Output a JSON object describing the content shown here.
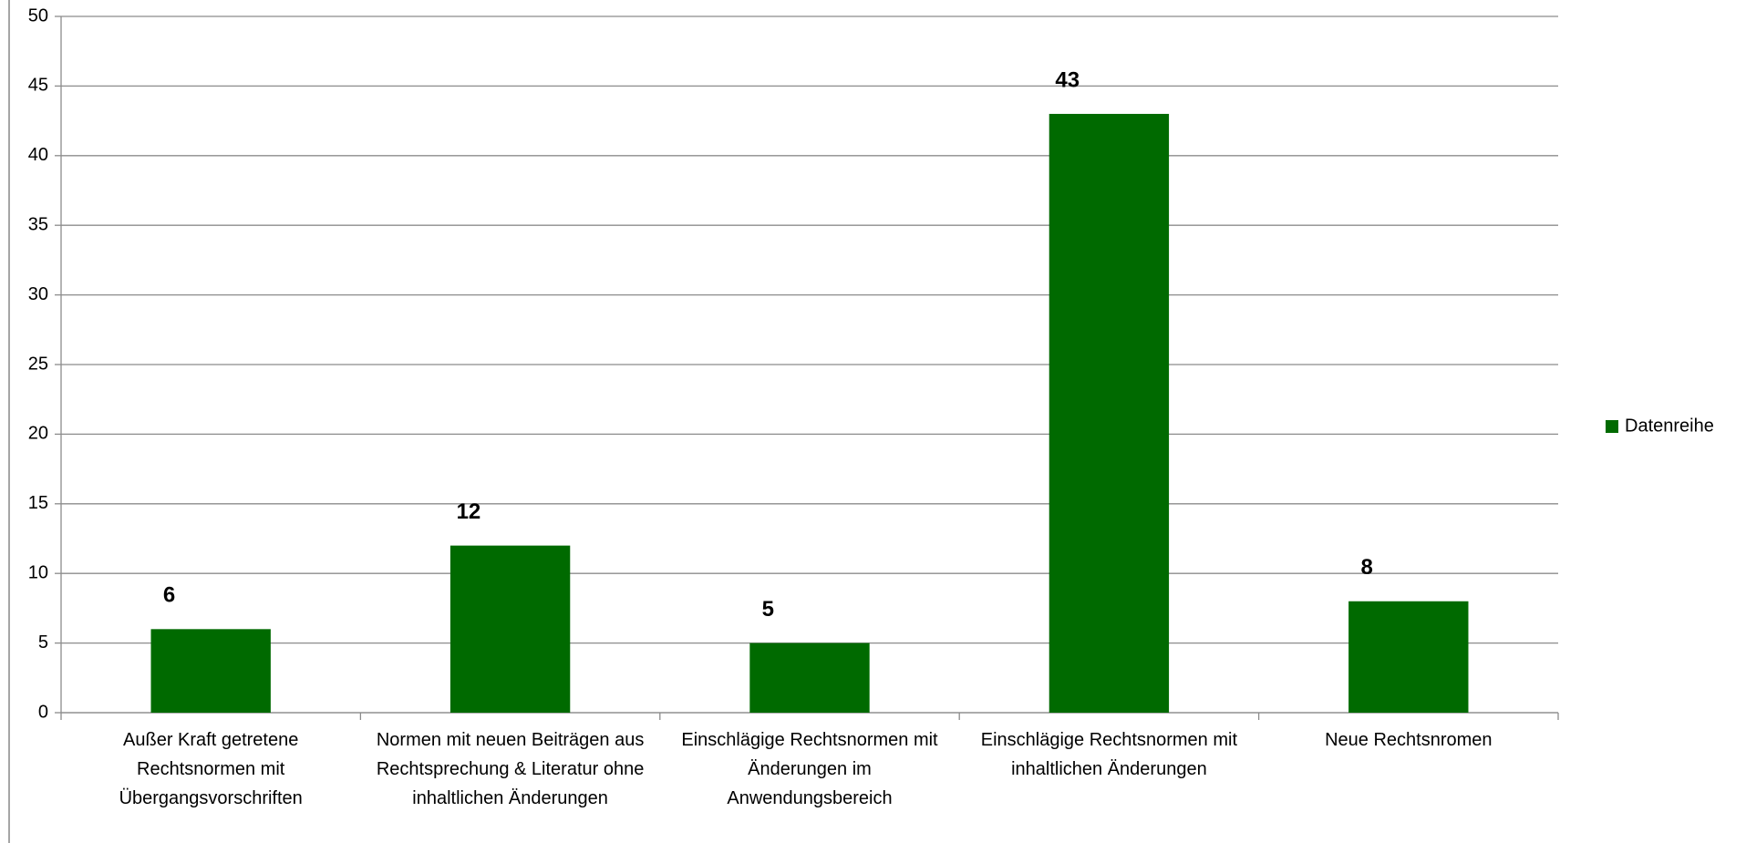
{
  "chart_data": {
    "type": "bar",
    "categories": [
      "Außer Kraft getretene Rechtsnormen mit Übergangsvorschriften",
      "Normen mit neuen Beiträgen aus Rechtsprechung & Literatur ohne inhaltlichen Änderungen",
      "Einschlägige Rechtsnormen mit Änderungen im Anwendungsbereich",
      "Einschlägige Rechtsnormen mit inhaltlichen Änderungen",
      "Neue Rechtsnromen"
    ],
    "series": [
      {
        "name": "Datenreihe",
        "color": "#006a00",
        "values": [
          6,
          12,
          5,
          43,
          8
        ]
      }
    ],
    "ylim": [
      0,
      50
    ],
    "yticks": [
      0,
      5,
      10,
      15,
      20,
      25,
      30,
      35,
      40,
      45,
      50
    ],
    "grid": true,
    "legend": "right"
  }
}
